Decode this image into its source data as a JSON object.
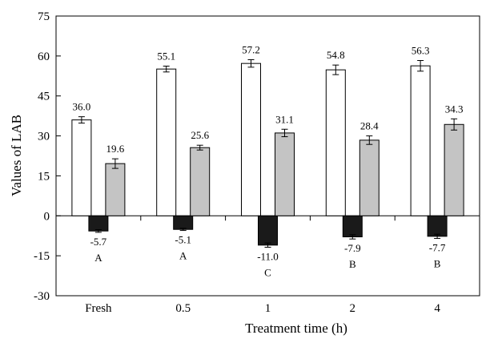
{
  "chart_data": {
    "type": "bar",
    "xlabel": "Treatment time (h)",
    "ylabel": "Values of LAB",
    "ylim": [
      -30,
      75
    ],
    "yticks": [
      -30,
      -15,
      0,
      15,
      30,
      45,
      60,
      75
    ],
    "grid": false,
    "categories": [
      "Fresh",
      "0.5",
      "1",
      "2",
      "4"
    ],
    "series": [
      {
        "color": "#ffffff",
        "values": [
          36.0,
          55.1,
          57.2,
          54.8,
          56.3
        ],
        "errors": [
          1.2,
          1.1,
          1.4,
          1.8,
          2.0
        ],
        "labels": [
          "36.0",
          "55.1",
          "57.2",
          "54.8",
          "56.3"
        ]
      },
      {
        "color": "#1a1a1a",
        "values": [
          -5.7,
          -5.1,
          -11.0,
          -7.9,
          -7.7
        ],
        "errors": [
          0.5,
          0.4,
          0.8,
          0.8,
          0.8
        ],
        "labels": [
          "-5.7",
          "-5.1",
          "-11.0",
          "-7.9",
          "-7.7"
        ]
      },
      {
        "color": "#c4c4c4",
        "values": [
          19.6,
          25.6,
          31.1,
          28.4,
          34.3
        ],
        "errors": [
          1.8,
          0.9,
          1.4,
          1.6,
          2.1
        ],
        "labels": [
          "19.6",
          "25.6",
          "31.1",
          "28.4",
          "34.3"
        ]
      }
    ],
    "group_letters": [
      "A",
      "A",
      "C",
      "B",
      "B"
    ]
  }
}
